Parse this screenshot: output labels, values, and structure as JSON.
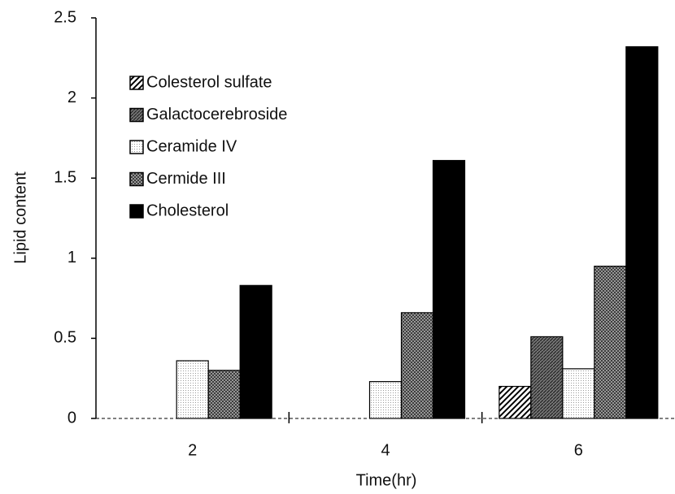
{
  "chart_data": {
    "type": "bar",
    "xlabel": "Time(hr)",
    "ylabel": "Lipid content",
    "categories": [
      "2",
      "4",
      "6"
    ],
    "series": [
      {
        "name": "Colesterol sulfate",
        "color": "#000000",
        "hatch": "diagonal",
        "values": [
          0,
          0,
          0.2
        ]
      },
      {
        "name": "Galactocerebroside",
        "color": "#000000",
        "hatch": "dense",
        "values": [
          0,
          0,
          0.51
        ]
      },
      {
        "name": "Ceramide IV",
        "color": "#000000",
        "hatch": "dots",
        "values": [
          0.36,
          0.23,
          0.31
        ]
      },
      {
        "name": "Cermide III",
        "color": "#000000",
        "hatch": "cross",
        "values": [
          0.3,
          0.66,
          0.95
        ]
      },
      {
        "name": "Cholesterol",
        "color": "#000000",
        "hatch": "solid",
        "values": [
          0.83,
          1.61,
          2.32
        ]
      }
    ],
    "ylim": [
      0,
      2.5
    ],
    "yticks": [
      0,
      0.5,
      1,
      1.5,
      2,
      2.5
    ],
    "grid": false,
    "legend": "upper left"
  }
}
